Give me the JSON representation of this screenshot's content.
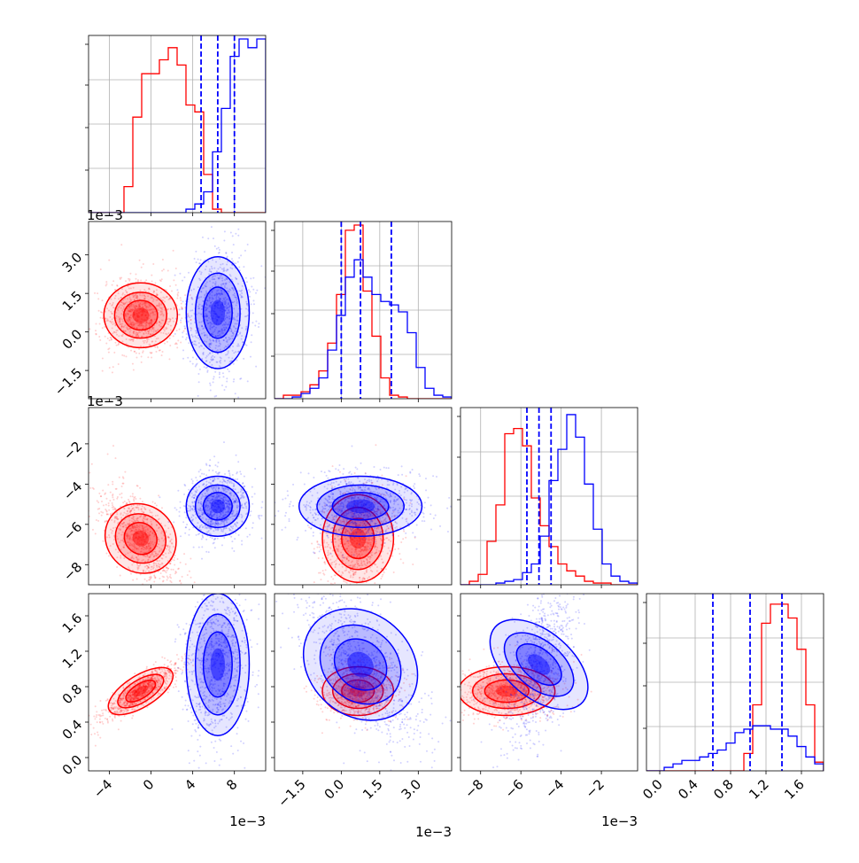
{
  "chart_data": {
    "type": "corner",
    "parameters": [
      {
        "range": [
          -6,
          11
        ],
        "ticks": [
          "−4",
          "0",
          "4",
          "8"
        ],
        "tick_values": [
          -4,
          0,
          4,
          8
        ],
        "offset": "1e−3"
      },
      {
        "range": [
          -2.6,
          4.3
        ],
        "ticks": [
          "−1.5",
          "0.0",
          "1.5",
          "3.0"
        ],
        "tick_values": [
          -1.5,
          0,
          1.5,
          3.0
        ],
        "offset": "1e−3"
      },
      {
        "range": [
          -9,
          -0.2
        ],
        "ticks": [
          "−8",
          "−6",
          "−4",
          "−2"
        ],
        "tick_values": [
          -8,
          -6,
          -4,
          -2
        ],
        "offset": "1e−3"
      },
      {
        "range": [
          -0.15,
          1.85
        ],
        "ticks": [
          "0.0",
          "0.4",
          "0.8",
          "1.2",
          "1.6"
        ],
        "tick_values": [
          0,
          0.4,
          0.8,
          1.2,
          1.6
        ],
        "offset": ""
      }
    ],
    "series": [
      {
        "color": "#ff0000",
        "means": [
          -1.0,
          0.65,
          -6.7,
          0.75
        ],
        "sds": [
          1.4,
          0.55,
          0.95,
          0.12
        ],
        "hist": [
          [
            0,
            0,
            0,
            0,
            0.15,
            0.55,
            0.8,
            0.8,
            0.88,
            0.95,
            0.85,
            0.62,
            0.58,
            0.22,
            0.02,
            0,
            0,
            0,
            0,
            0
          ],
          [
            0,
            0.02,
            0.02,
            0.04,
            0.08,
            0.16,
            0.32,
            0.6,
            0.97,
            1.0,
            0.62,
            0.36,
            0.12,
            0.02,
            0.01,
            0,
            0,
            0,
            0,
            0
          ],
          [
            0,
            0.02,
            0.06,
            0.25,
            0.46,
            0.87,
            0.9,
            0.8,
            0.5,
            0.34,
            0.22,
            0.12,
            0.08,
            0.05,
            0.02,
            0.01,
            0.01,
            0,
            0,
            0
          ],
          [
            0,
            0,
            0,
            0,
            0,
            0,
            0,
            0,
            0,
            0,
            0,
            0.1,
            0.38,
            0.85,
            0.96,
            0.96,
            0.88,
            0.7,
            0.38,
            0.05
          ]
        ]
      },
      {
        "color": "#0000ff",
        "means": [
          6.4,
          0.75,
          -5.1,
          1.05
        ],
        "sds": [
          1.2,
          0.95,
          0.65,
          0.35
        ],
        "hist": [
          [
            0,
            0,
            0,
            0,
            0,
            0,
            0,
            0,
            0,
            0,
            0,
            0.02,
            0.05,
            0.12,
            0.35,
            0.6,
            0.9,
            1.0,
            0.95,
            1.0
          ],
          [
            0,
            0,
            0.01,
            0.03,
            0.06,
            0.12,
            0.28,
            0.48,
            0.7,
            0.8,
            0.7,
            0.6,
            0.56,
            0.54,
            0.5,
            0.38,
            0.18,
            0.06,
            0.02,
            0.01
          ],
          [
            0,
            0,
            0,
            0,
            0.01,
            0.02,
            0.03,
            0.07,
            0.12,
            0.28,
            0.6,
            0.78,
            0.98,
            0.85,
            0.58,
            0.32,
            0.12,
            0.05,
            0.02,
            0.01
          ],
          [
            0,
            0,
            0.02,
            0.04,
            0.06,
            0.06,
            0.08,
            0.1,
            0.12,
            0.16,
            0.22,
            0.24,
            0.26,
            0.26,
            0.24,
            0.24,
            0.2,
            0.14,
            0.08,
            0.04
          ]
        ]
      }
    ],
    "quantile_lines": [
      {
        "param": 0,
        "values": [
          4.8,
          6.4,
          8.0
        ]
      },
      {
        "param": 1,
        "values": [
          0.0,
          0.75,
          1.95
        ]
      },
      {
        "param": 2,
        "values": [
          -5.7,
          -5.1,
          -4.5
        ]
      },
      {
        "param": 3,
        "values": [
          0.6,
          1.02,
          1.38
        ]
      }
    ],
    "grid": true
  }
}
